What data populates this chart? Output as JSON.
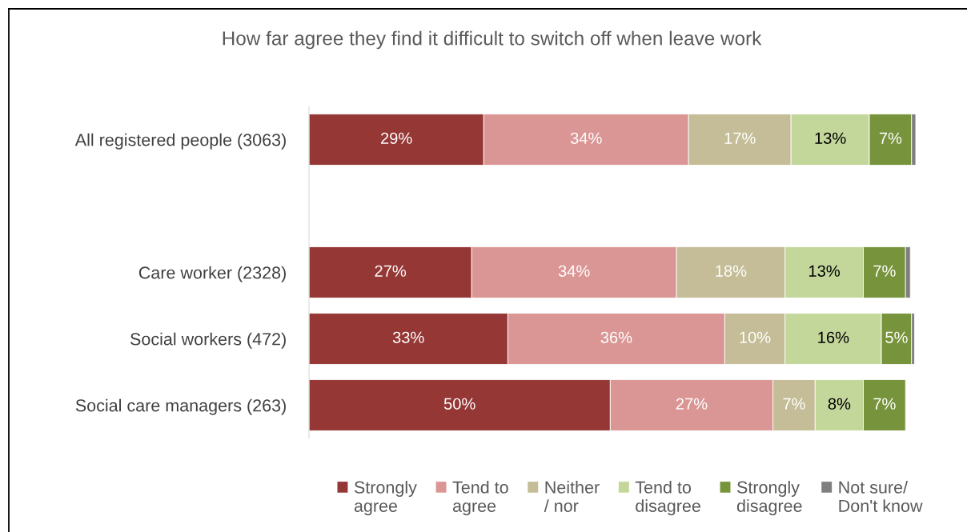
{
  "chart_data": {
    "type": "bar",
    "orientation": "horizontal",
    "stacked": true,
    "title": "How far agree they find it difficult to switch off when leave work",
    "categories": [
      "All registered people (3063)",
      null,
      "Care worker (2328)",
      "Social workers (472)",
      "Social care managers (263)"
    ],
    "series": [
      {
        "name": "Strongly\nagree",
        "color": "#953735",
        "values": [
          29,
          null,
          27,
          33,
          50
        ],
        "value_labels": [
          "29%",
          null,
          "27%",
          "33%",
          "50%"
        ]
      },
      {
        "name": "Tend to\nagree",
        "color": "#da9694",
        "values": [
          34,
          null,
          34,
          36,
          27
        ],
        "value_labels": [
          "34%",
          null,
          "34%",
          "36%",
          "27%"
        ]
      },
      {
        "name": "Neither\n/ nor",
        "color": "#c4bd97",
        "values": [
          17,
          null,
          18,
          10,
          7
        ],
        "value_labels": [
          "17%",
          null,
          "18%",
          "10%",
          "7%"
        ]
      },
      {
        "name": "Tend to\ndisagree",
        "color": "#c4d79b",
        "values": [
          13,
          null,
          13,
          16,
          8
        ],
        "value_labels": [
          "13%",
          null,
          "13%",
          "16%",
          "8%"
        ]
      },
      {
        "name": "Strongly\ndisagree",
        "color": "#77933c",
        "values": [
          7,
          null,
          7,
          5,
          7
        ],
        "value_labels": [
          "7%",
          null,
          "7%",
          "5%",
          "7%"
        ]
      },
      {
        "name": "Not sure/\nDon't know",
        "color": "#7f7f7f",
        "values": [
          0.7,
          null,
          0.8,
          0.5,
          null
        ]
      }
    ],
    "tick_labels": "y",
    "legend": "bottom"
  }
}
